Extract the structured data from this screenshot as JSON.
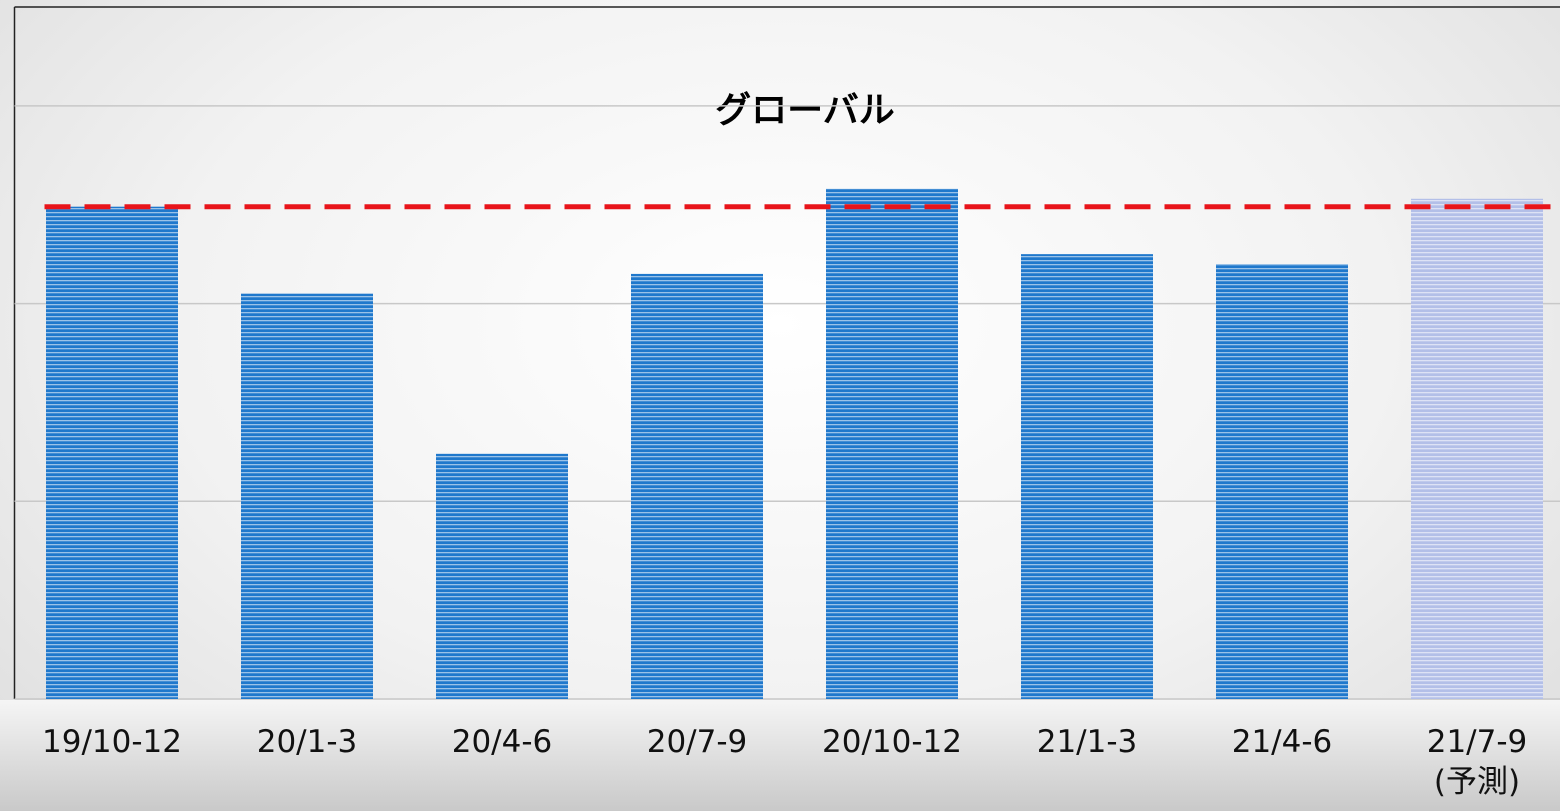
{
  "chart_data": {
    "type": "bar",
    "title": "グローバル",
    "categories": [
      "19/10-12",
      "20/1-3",
      "20/4-6",
      "20/7-9",
      "20/10-12",
      "21/1-3",
      "21/4-6",
      "21/7-9\n(予測)"
    ],
    "values": [
      2.49,
      2.05,
      1.24,
      2.15,
      2.58,
      2.25,
      2.2,
      2.53
    ],
    "colors": [
      "#1f78cc",
      "#1f78cc",
      "#1f78cc",
      "#1f78cc",
      "#1f78cc",
      "#1f78cc",
      "#1f78cc",
      "#b3bfe8"
    ],
    "reference_line": {
      "value": 2.49,
      "color": "#e8141a"
    },
    "ylim": [
      0,
      3.5
    ],
    "yticks": [
      0,
      1,
      2,
      3
    ],
    "grid": true
  }
}
